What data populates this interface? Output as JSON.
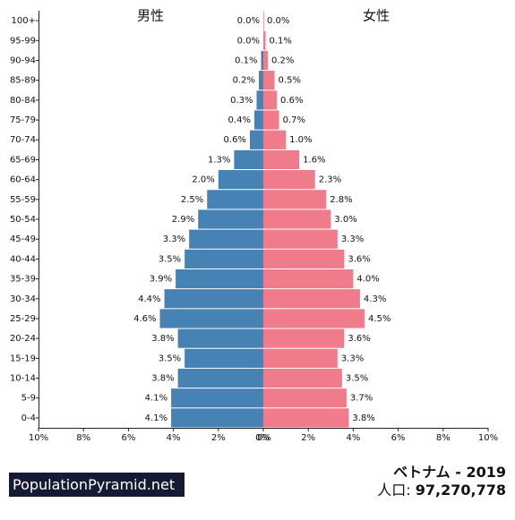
{
  "chart_data": {
    "type": "bar",
    "orientation": "horizontal-pyramid",
    "categories": [
      "0-4",
      "5-9",
      "10-14",
      "15-19",
      "20-24",
      "25-29",
      "30-34",
      "35-39",
      "40-44",
      "45-49",
      "50-54",
      "55-59",
      "60-64",
      "65-69",
      "70-74",
      "75-79",
      "80-84",
      "85-89",
      "90-94",
      "95-99",
      "100+"
    ],
    "series": [
      {
        "name": "男性",
        "color": "#4682b4",
        "values": [
          4.1,
          4.1,
          3.8,
          3.5,
          3.8,
          4.6,
          4.4,
          3.9,
          3.5,
          3.3,
          2.9,
          2.5,
          2.0,
          1.3,
          0.6,
          0.4,
          0.3,
          0.2,
          0.1,
          0.0,
          0.0
        ]
      },
      {
        "name": "女性",
        "color": "#f07b8a",
        "values": [
          3.8,
          3.7,
          3.5,
          3.3,
          3.6,
          4.5,
          4.3,
          4.0,
          3.6,
          3.3,
          3.0,
          2.8,
          2.3,
          1.6,
          1.0,
          0.7,
          0.6,
          0.5,
          0.2,
          0.1,
          0.0
        ]
      }
    ],
    "xlim": [
      0,
      10
    ],
    "xticks": [
      "10%",
      "8%",
      "6%",
      "4%",
      "2%",
      "0%",
      "0%",
      "2%",
      "4%",
      "6%",
      "8%",
      "10%"
    ],
    "grid": false,
    "legend": "top"
  },
  "footer": {
    "brand": "PopulationPyramid.net",
    "title": "ベトナム - 2019",
    "population_label": "人口:",
    "population_value": "97,270,778"
  }
}
